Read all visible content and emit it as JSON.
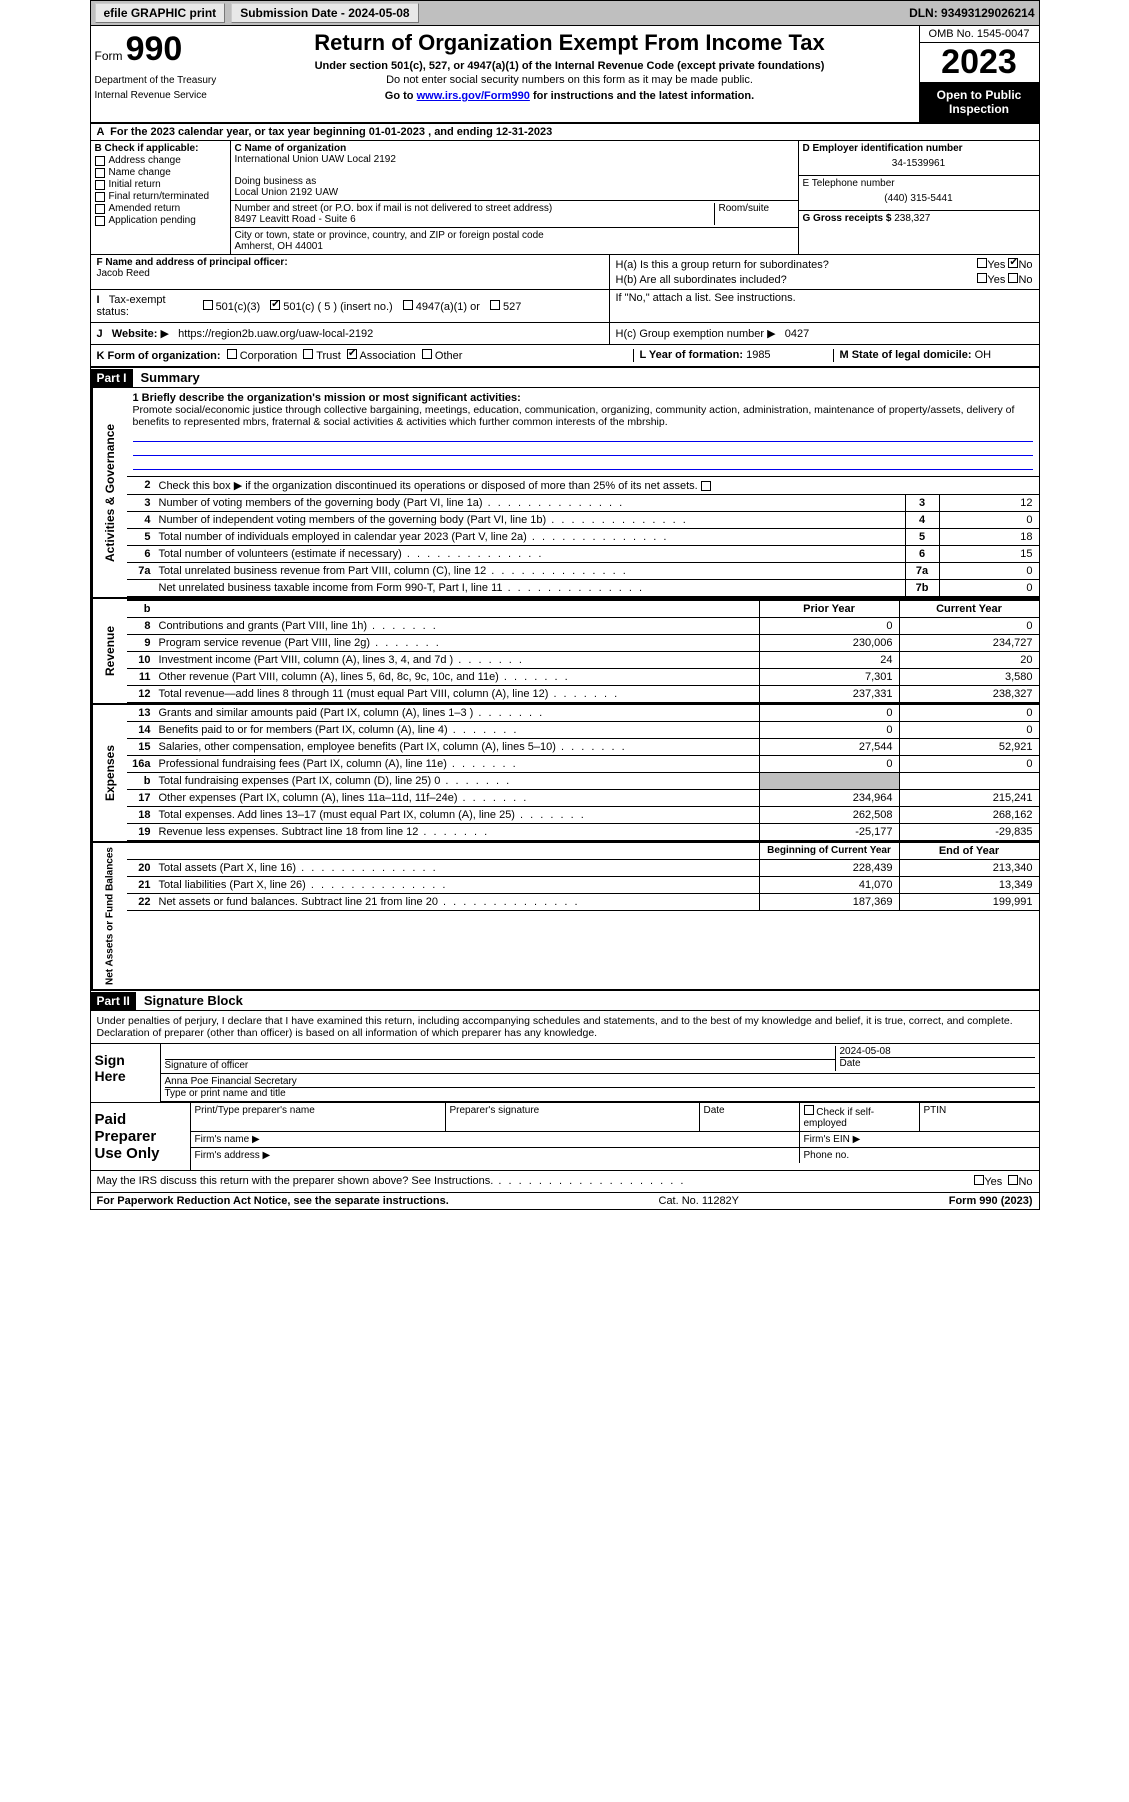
{
  "topbar": {
    "efile": "efile GRAPHIC print",
    "submission": "Submission Date - 2024-05-08",
    "dln": "DLN: 93493129026214"
  },
  "header": {
    "form_label": "Form",
    "form_num": "990",
    "dept": "Department of the Treasury",
    "irs": "Internal Revenue Service",
    "title": "Return of Organization Exempt From Income Tax",
    "subtitle": "Under section 501(c), 527, or 4947(a)(1) of the Internal Revenue Code (except private foundations)",
    "ssn_warn": "Do not enter social security numbers on this form as it may be made public.",
    "goto_prefix": "Go to ",
    "goto_link": "www.irs.gov/Form990",
    "goto_suffix": " for instructions and the latest information.",
    "omb": "OMB No. 1545-0047",
    "year": "2023",
    "open": "Open to Public Inspection"
  },
  "line_a": "For the 2023 calendar year, or tax year beginning 01-01-2023    , and ending 12-31-2023",
  "box_b": {
    "header": "B Check if applicable:",
    "items": [
      "Address change",
      "Name change",
      "Initial return",
      "Final return/terminated",
      "Amended return",
      "Application pending"
    ]
  },
  "box_c": {
    "label": "C Name of organization",
    "name": "International Union UAW Local 2192",
    "dba_label": "Doing business as",
    "dba": "Local Union 2192 UAW",
    "street_label": "Number and street (or P.O. box if mail is not delivered to street address)",
    "room_label": "Room/suite",
    "street": "8497 Leavitt Road - Suite 6",
    "city_label": "City or town, state or province, country, and ZIP or foreign postal code",
    "city": "Amherst, OH  44001"
  },
  "box_d": {
    "label": "D Employer identification number",
    "value": "34-1539961"
  },
  "box_e": {
    "label": "E Telephone number",
    "value": "(440) 315-5441"
  },
  "box_g": {
    "label": "G Gross receipts $",
    "value": "238,327"
  },
  "box_f": {
    "label": "F Name and address of principal officer:",
    "name": "Jacob Reed"
  },
  "box_h": {
    "a_label": "H(a)  Is this a group return for subordinates?",
    "b_label": "H(b)  Are all subordinates included?",
    "b_note": "If \"No,\" attach a list. See instructions.",
    "c_label": "H(c)  Group exemption number ",
    "c_arrow": "▶",
    "c_value": "0427",
    "yes": "Yes",
    "no": "No"
  },
  "box_i": {
    "label": "Tax-exempt status:",
    "opts": [
      "501(c)(3)",
      "501(c) ( 5 ) (insert no.)",
      "4947(a)(1) or",
      "527"
    ]
  },
  "box_j": {
    "label": "Website:",
    "arrow": "▶",
    "value": "https://region2b.uaw.org/uaw-local-2192"
  },
  "box_k": {
    "label": "K Form of organization:",
    "opts": [
      "Corporation",
      "Trust",
      "Association",
      "Other"
    ]
  },
  "box_l": {
    "label": "L Year of formation:",
    "value": "1985"
  },
  "box_m": {
    "label": "M State of legal domicile:",
    "value": "OH"
  },
  "part1": {
    "badge": "Part I",
    "title": "Summary"
  },
  "mission": {
    "label": "1   Briefly describe the organization's mission or most significant activities:",
    "text": "Promote social/economic justice through collective bargaining, meetings, education, communication, organizing, community action, administration, maintenance of property/assets, delivery of benefits to represented mbrs, fraternal & social activities & activities which further common interests of the mbrship."
  },
  "line2": "Check this box ▶       if the organization discontinued its operations or disposed of more than 25% of its net assets.",
  "gov_lines": [
    {
      "n": "3",
      "desc": "Number of voting members of the governing body (Part VI, line 1a)",
      "box": "3",
      "val": "12"
    },
    {
      "n": "4",
      "desc": "Number of independent voting members of the governing body (Part VI, line 1b)",
      "box": "4",
      "val": "0"
    },
    {
      "n": "5",
      "desc": "Total number of individuals employed in calendar year 2023 (Part V, line 2a)",
      "box": "5",
      "val": "18"
    },
    {
      "n": "6",
      "desc": "Total number of volunteers (estimate if necessary)",
      "box": "6",
      "val": "15"
    },
    {
      "n": "7a",
      "desc": "Total unrelated business revenue from Part VIII, column (C), line 12",
      "box": "7a",
      "val": "0"
    },
    {
      "n": "",
      "desc": "Net unrelated business taxable income from Form 990-T, Part I, line 11",
      "box": "7b",
      "val": "0"
    }
  ],
  "rev_hdr": {
    "b": "b",
    "prior": "Prior Year",
    "current": "Current Year"
  },
  "rev_lines": [
    {
      "n": "8",
      "desc": "Contributions and grants (Part VIII, line 1h)",
      "v1": "0",
      "v2": "0"
    },
    {
      "n": "9",
      "desc": "Program service revenue (Part VIII, line 2g)",
      "v1": "230,006",
      "v2": "234,727"
    },
    {
      "n": "10",
      "desc": "Investment income (Part VIII, column (A), lines 3, 4, and 7d )",
      "v1": "24",
      "v2": "20"
    },
    {
      "n": "11",
      "desc": "Other revenue (Part VIII, column (A), lines 5, 6d, 8c, 9c, 10c, and 11e)",
      "v1": "7,301",
      "v2": "3,580"
    },
    {
      "n": "12",
      "desc": "Total revenue—add lines 8 through 11 (must equal Part VIII, column (A), line 12)",
      "v1": "237,331",
      "v2": "238,327"
    }
  ],
  "exp_lines": [
    {
      "n": "13",
      "desc": "Grants and similar amounts paid (Part IX, column (A), lines 1–3 )",
      "v1": "0",
      "v2": "0"
    },
    {
      "n": "14",
      "desc": "Benefits paid to or for members (Part IX, column (A), line 4)",
      "v1": "0",
      "v2": "0"
    },
    {
      "n": "15",
      "desc": "Salaries, other compensation, employee benefits (Part IX, column (A), lines 5–10)",
      "v1": "27,544",
      "v2": "52,921"
    },
    {
      "n": "16a",
      "desc": "Professional fundraising fees (Part IX, column (A), line 11e)",
      "v1": "0",
      "v2": "0"
    },
    {
      "n": "b",
      "desc": "Total fundraising expenses (Part IX, column (D), line 25) 0",
      "v1": "",
      "v2": "",
      "shaded": true
    },
    {
      "n": "17",
      "desc": "Other expenses (Part IX, column (A), lines 11a–11d, 11f–24e)",
      "v1": "234,964",
      "v2": "215,241"
    },
    {
      "n": "18",
      "desc": "Total expenses. Add lines 13–17 (must equal Part IX, column (A), line 25)",
      "v1": "262,508",
      "v2": "268,162"
    },
    {
      "n": "19",
      "desc": "Revenue less expenses. Subtract line 18 from line 12",
      "v1": "-25,177",
      "v2": "-29,835"
    }
  ],
  "na_hdr": {
    "prior": "Beginning of Current Year",
    "current": "End of Year"
  },
  "na_lines": [
    {
      "n": "20",
      "desc": "Total assets (Part X, line 16)",
      "v1": "228,439",
      "v2": "213,340"
    },
    {
      "n": "21",
      "desc": "Total liabilities (Part X, line 26)",
      "v1": "41,070",
      "v2": "13,349"
    },
    {
      "n": "22",
      "desc": "Net assets or fund balances. Subtract line 21 from line 20",
      "v1": "187,369",
      "v2": "199,991"
    }
  ],
  "sidelabels": {
    "gov": "Activities & Governance",
    "rev": "Revenue",
    "exp": "Expenses",
    "na": "Net Assets or Fund Balances"
  },
  "part2": {
    "badge": "Part II",
    "title": "Signature Block"
  },
  "perjury": "Under penalties of perjury, I declare that I have examined this return, including accompanying schedules and statements, and to the best of my knowledge and belief, it is true, correct, and complete. Declaration of preparer (other than officer) is based on all information of which preparer has any knowledge.",
  "sign": {
    "label": "Sign Here",
    "sig_label": "Signature of officer",
    "date_label": "Date",
    "date_val": "2024-05-08",
    "name": "Anna Poe  Financial Secretary",
    "type_label": "Type or print name and title"
  },
  "prep": {
    "label": "Paid Preparer Use Only",
    "name_label": "Print/Type preparer's name",
    "sig_label": "Preparer's signature",
    "date_label": "Date",
    "check_label": "Check        if self-employed",
    "ptin_label": "PTIN",
    "firm_name": "Firm's name    ▶",
    "firm_ein": "Firm's EIN  ▶",
    "firm_addr": "Firm's address  ▶",
    "phone": "Phone no."
  },
  "discuss": {
    "text": "May the IRS discuss this return with the preparer shown above? See Instructions.",
    "yes": "Yes",
    "no": "No"
  },
  "footer": {
    "left": "For Paperwork Reduction Act Notice, see the separate instructions.",
    "mid": "Cat. No. 11282Y",
    "right": "Form 990 (2023)"
  }
}
